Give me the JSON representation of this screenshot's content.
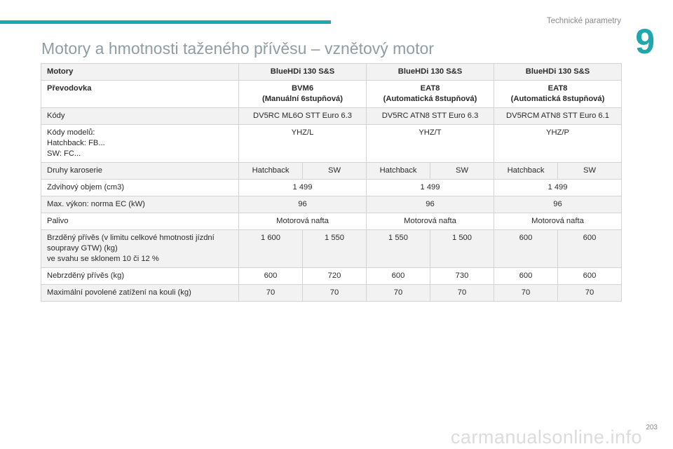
{
  "header": {
    "section_label": "Technické parametry",
    "chapter_number": "9"
  },
  "page_title": "Motory a hmotnosti taženého přívěsu – vznětový motor",
  "table": {
    "engine_row": {
      "label": "Motory",
      "values": [
        "BlueHDi 130 S&S",
        "BlueHDi 130 S&S",
        "BlueHDi 130 S&S"
      ]
    },
    "gearbox_row": {
      "label": "Převodovka",
      "values": [
        {
          "line1": "BVM6",
          "line2": "(Manuální 6stupňová)"
        },
        {
          "line1": "EAT8",
          "line2": "(Automatická 8stupňová)"
        },
        {
          "line1": "EAT8",
          "line2": "(Automatická 8stupňová)"
        }
      ]
    },
    "codes_row": {
      "label": "Kódy",
      "values": [
        "DV5RC ML6O STT Euro 6.3",
        "DV5RC ATN8 STT Euro 6.3",
        "DV5RCM ATN8 STT Euro 6.1"
      ]
    },
    "model_codes_row": {
      "label_line1": "Kódy modelů:",
      "label_line2": "Hatchback: FB...",
      "label_line3": "SW: FC...",
      "values": [
        "YHZ/L",
        "YHZ/T",
        "YHZ/P"
      ]
    },
    "body_row": {
      "label": "Druhy karoserie",
      "values": [
        "Hatchback",
        "SW",
        "Hatchback",
        "SW",
        "Hatchback",
        "SW"
      ]
    },
    "displacement_row": {
      "label": "Zdvihový objem (cm3)",
      "values": [
        "1 499",
        "1 499",
        "1 499"
      ]
    },
    "power_row": {
      "label": "Max. výkon: norma EC (kW)",
      "values": [
        "96",
        "96",
        "96"
      ]
    },
    "fuel_row": {
      "label": "Palivo",
      "values": [
        "Motorová nafta",
        "Motorová nafta",
        "Motorová nafta"
      ]
    },
    "braked_trailer_row": {
      "label_line1": "Brzděný přívěs (v limitu celkové hmotnosti jízdní",
      "label_line2": "soupravy GTW) (kg)",
      "label_line3": "ve svahu se sklonem 10 či 12 %",
      "values": [
        "1 600",
        "1 550",
        "1 550",
        "1 500",
        "600",
        "600"
      ]
    },
    "unbraked_trailer_row": {
      "label": "Nebrzděný přívěs (kg)",
      "values": [
        "600",
        "720",
        "600",
        "730",
        "600",
        "600"
      ]
    },
    "towball_row": {
      "label": "Maximální povolené zatížení na kouli (kg)",
      "values": [
        "70",
        "70",
        "70",
        "70",
        "70",
        "70"
      ]
    }
  },
  "footer": {
    "page_number": "203",
    "watermark": "carmanualsonline.info"
  },
  "colors": {
    "accent": "#20a7ad",
    "title_gray": "#8f9da3",
    "row_shade": "#f2f2f2",
    "border": "#d3d3d3"
  }
}
